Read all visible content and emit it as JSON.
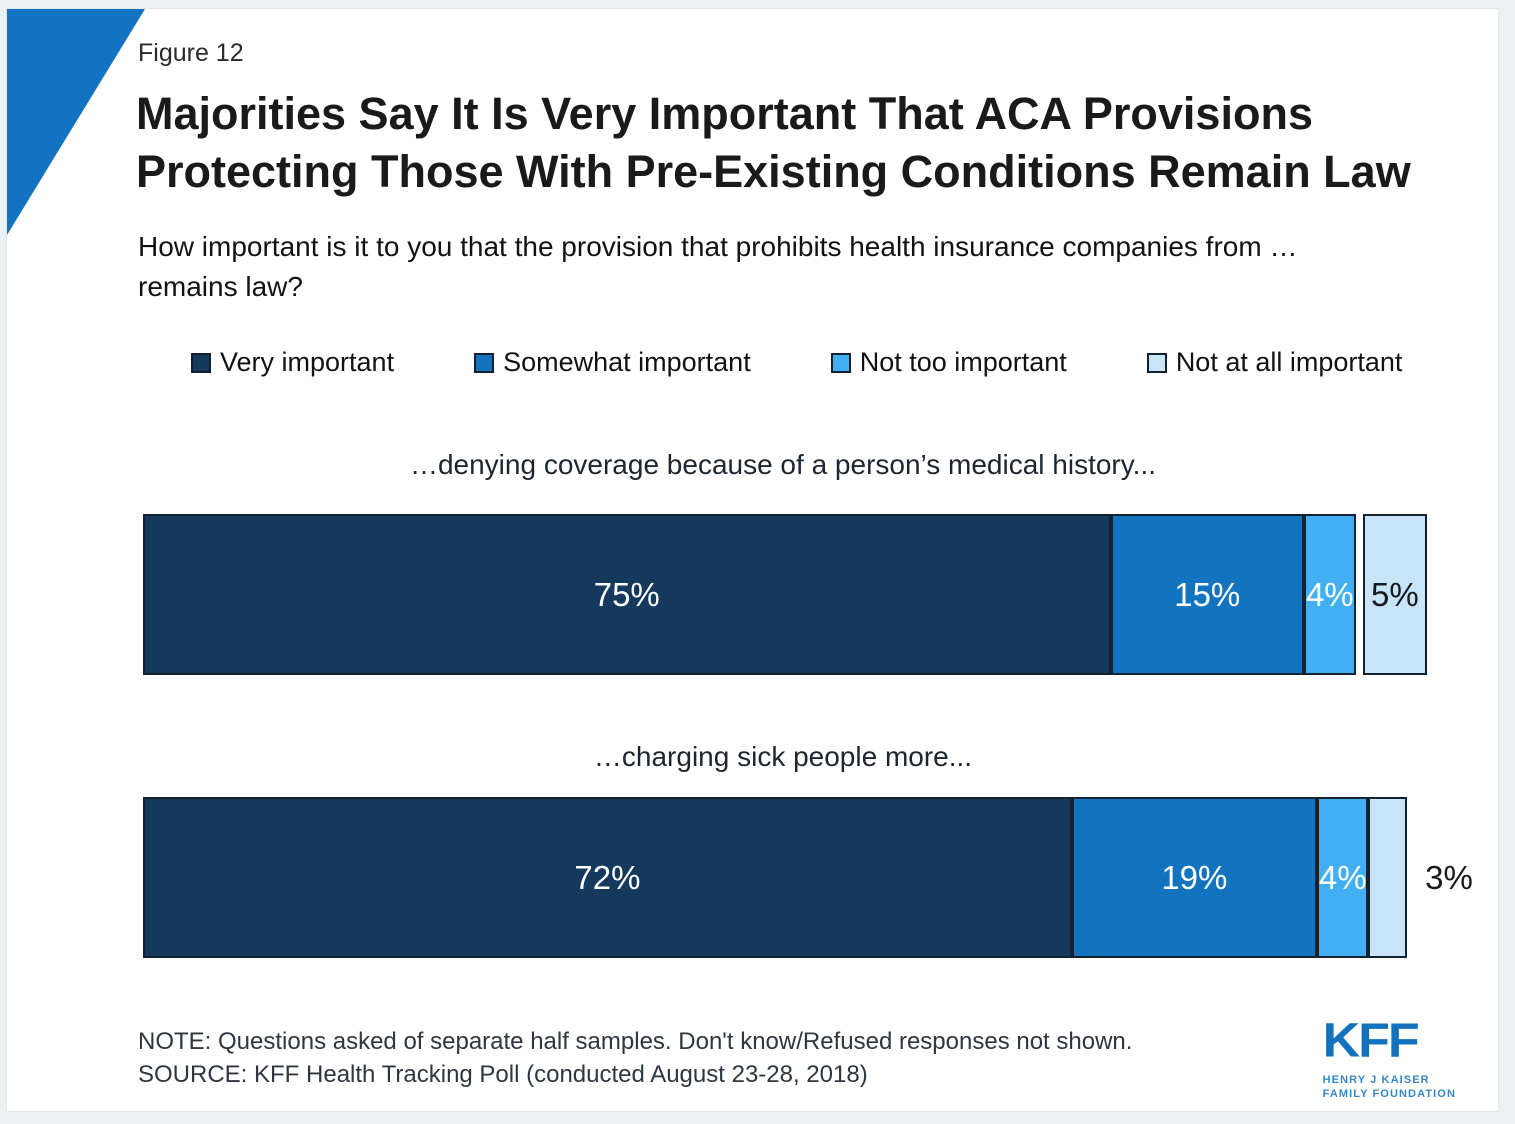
{
  "figure_label": "Figure 12",
  "title": {
    "line1": "Majorities Say It Is Very Important That ACA Provisions",
    "line2": "Protecting Those With Pre-Existing Conditions Remain Law"
  },
  "subtitle": "How important is it to you that the provision that prohibits health insurance companies from …\nremains law?",
  "legend": [
    {
      "label": "Very important",
      "color": "#14395C"
    },
    {
      "label": "Somewhat important",
      "color": "#1274BE"
    },
    {
      "label": "Not too important",
      "color": "#41AFF1"
    },
    {
      "label": "Not at all important",
      "color": "#C7E4F8"
    }
  ],
  "chart_data": {
    "type": "bar",
    "orientation": "horizontal-stacked",
    "unit": "percent",
    "series_names": [
      "Very important",
      "Somewhat important",
      "Not too important",
      "Not at all important"
    ],
    "series_colors": [
      "#14395C",
      "#1274BE",
      "#41AFF1",
      "#C7E4F8"
    ],
    "segment_border_color": "#15212D",
    "bars": [
      {
        "category": "…denying coverage because of a person’s medical history...",
        "segments": [
          {
            "series": "Very important",
            "value": 75,
            "label": "75%",
            "label_color": "#FFFFFF",
            "label_outside": false,
            "gap_before": false
          },
          {
            "series": "Somewhat important",
            "value": 15,
            "label": "15%",
            "label_color": "#FFFFFF",
            "label_outside": false,
            "gap_before": false
          },
          {
            "series": "Not too important",
            "value": 4,
            "label": "4%",
            "label_color": "#FFFFFF",
            "label_outside": false,
            "gap_before": false
          },
          {
            "series": "Not at all important",
            "value": 5,
            "label": "5%",
            "label_color": "#15181C",
            "label_outside": false,
            "gap_before": true
          }
        ]
      },
      {
        "category": "…charging sick people more...",
        "segments": [
          {
            "series": "Very important",
            "value": 72,
            "label": "72%",
            "label_color": "#FFFFFF",
            "label_outside": false,
            "gap_before": false
          },
          {
            "series": "Somewhat important",
            "value": 19,
            "label": "19%",
            "label_color": "#FFFFFF",
            "label_outside": false,
            "gap_before": false
          },
          {
            "series": "Not too important",
            "value": 4,
            "label": "4%",
            "label_color": "#FFFFFF",
            "label_outside": false,
            "gap_before": false
          },
          {
            "series": "Not at all important",
            "value": 3,
            "label": "3%",
            "label_color": "#15181C",
            "label_outside": true,
            "gap_before": false
          }
        ]
      }
    ]
  },
  "note": "NOTE: Questions asked of separate half samples. Don't know/Refused responses not shown.",
  "source": "SOURCE: KFF Health Tracking Poll (conducted August 23-28, 2018)",
  "logo": {
    "name": "KFF",
    "tagline1": "HENRY J KAISER",
    "tagline2": "FAMILY FOUNDATION",
    "color": "#1471BE"
  },
  "accent_triangle_color": "#1273C2"
}
